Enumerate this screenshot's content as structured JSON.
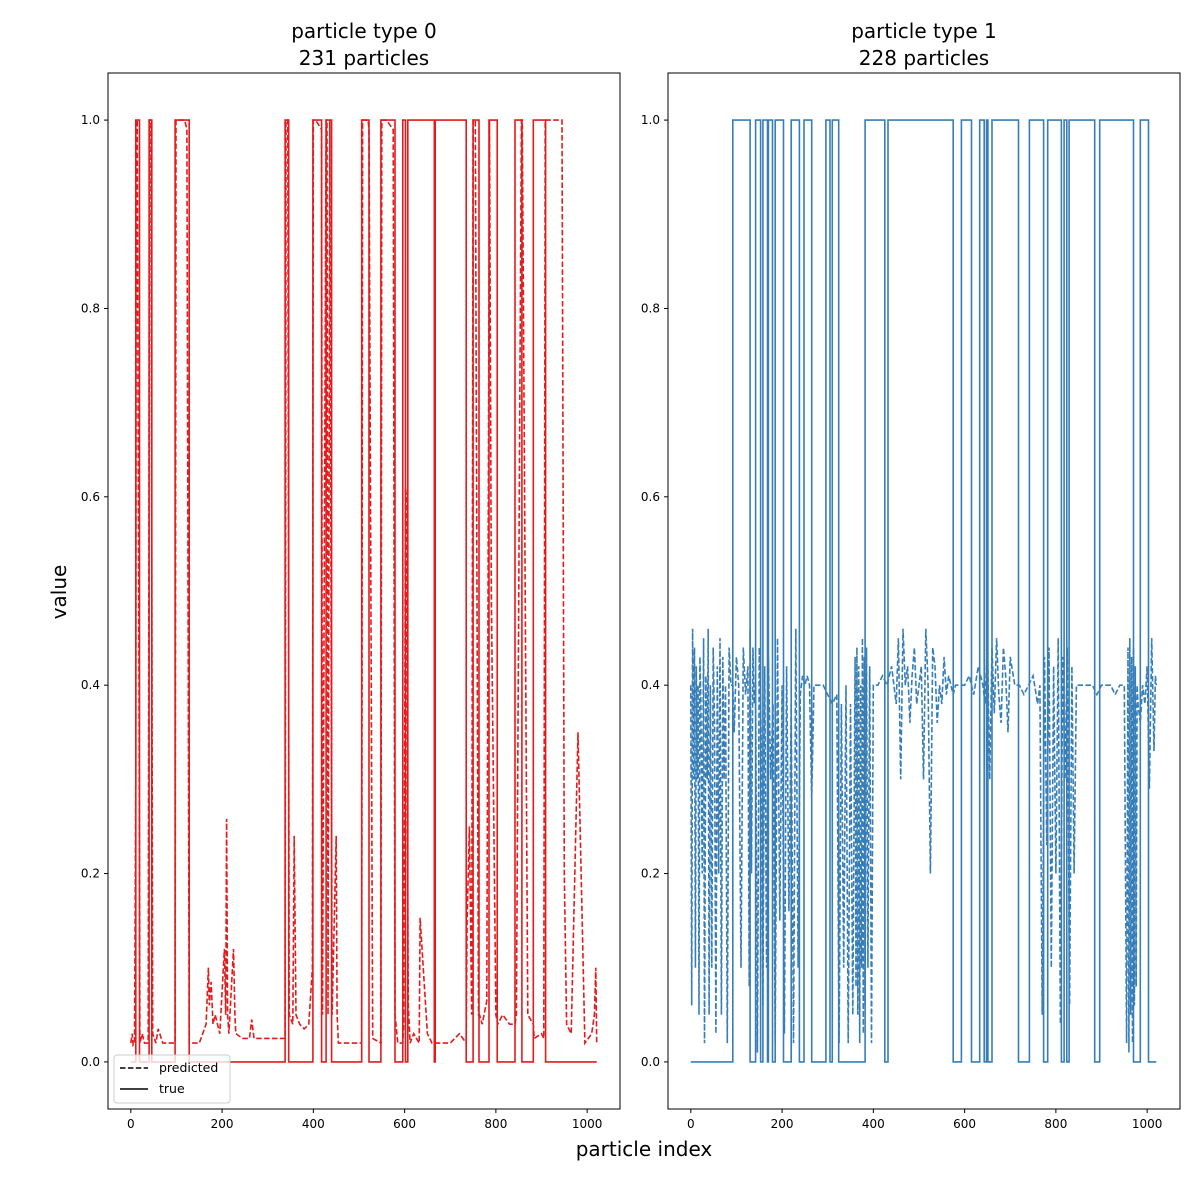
{
  "figure": {
    "xlabel": "particle index",
    "ylabel": "value"
  },
  "legend": {
    "entries": [
      {
        "label": "predicted",
        "style": "dashed"
      },
      {
        "label": "true",
        "style": "solid"
      }
    ],
    "placement": "lower-left",
    "color": "#000000"
  },
  "chart_data": [
    {
      "type": "line",
      "title_line1": "particle type 0",
      "title_line2": "231 particles",
      "color": "#e41a1c",
      "xlim": [
        -50,
        1072
      ],
      "ylim": [
        -0.05,
        1.05
      ],
      "xticks": [
        0,
        200,
        400,
        600,
        800,
        1000
      ],
      "yticks": [
        "0.0",
        "0.2",
        "0.4",
        "0.6",
        "0.8",
        "1.0"
      ],
      "grid": false,
      "series": [
        {
          "name": "true",
          "style": "solid",
          "x": [
            0,
            11,
            11,
            19,
            19,
            40,
            40,
            46,
            46,
            97,
            97,
            128,
            128,
            338,
            338,
            346,
            346,
            399,
            399,
            418,
            418,
            428,
            428,
            440,
            440,
            506,
            506,
            522,
            522,
            548,
            548,
            579,
            579,
            596,
            596,
            602,
            602,
            607,
            607,
            665,
            665,
            667,
            667,
            735,
            735,
            750,
            750,
            763,
            763,
            785,
            785,
            803,
            803,
            842,
            842,
            857,
            857,
            882,
            882,
            909,
            909,
            1021
          ],
          "y": [
            0,
            0,
            1,
            1,
            0,
            0,
            1,
            1,
            0,
            0,
            1,
            1,
            0,
            0,
            1,
            1,
            0,
            0,
            1,
            1,
            0,
            0,
            1,
            1,
            0,
            0,
            1,
            1,
            0,
            0,
            1,
            1,
            0,
            0,
            1,
            1,
            0,
            0,
            1,
            1,
            0,
            0,
            1,
            1,
            0,
            0,
            1,
            1,
            0,
            0,
            1,
            1,
            0,
            0,
            1,
            1,
            0,
            0,
            1,
            1,
            0,
            0
          ]
        },
        {
          "name": "predicted",
          "style": "dashed",
          "x": [
            0,
            3,
            5,
            8,
            11,
            12,
            14,
            18,
            20,
            25,
            30,
            38,
            41,
            44,
            48,
            55,
            60,
            70,
            80,
            97,
            99,
            118,
            123,
            128,
            130,
            150,
            165,
            170,
            172,
            176,
            180,
            185,
            195,
            205,
            208,
            210,
            212,
            215,
            225,
            228,
            230,
            245,
            260,
            265,
            270,
            300,
            320,
            338,
            340,
            344,
            347,
            355,
            358,
            362,
            370,
            380,
            390,
            398,
            400,
            405,
            418,
            420,
            428,
            430,
            432,
            436,
            441,
            450,
            452,
            455,
            470,
            490,
            505,
            506,
            508,
            520,
            522,
            530,
            548,
            550,
            560,
            575,
            579,
            585,
            596,
            598,
            600,
            602,
            604,
            606,
            608,
            612,
            620,
            632,
            634,
            650,
            660,
            665,
            667,
            700,
            720,
            735,
            737,
            742,
            747,
            750,
            755,
            762,
            764,
            770,
            780,
            786,
            790,
            800,
            804,
            815,
            830,
            842,
            845,
            856,
            858,
            870,
            882,
            884,
            900,
            905,
            908,
            912,
            930,
            945,
            950,
            955,
            965,
            980,
            995,
            1010,
            1016,
            1019,
            1021
          ],
          "y": [
            0.02,
            0.03,
            0.018,
            0.02,
            0.3,
            1,
            1,
            0.4,
            0.02,
            0.03,
            0.02,
            0.02,
            1,
            1,
            0.03,
            0.02,
            0.035,
            0.02,
            0.02,
            0.02,
            1,
            1,
            0.99,
            0.02,
            0.02,
            0.02,
            0.04,
            0.1,
            0.06,
            0.085,
            0.04,
            0.05,
            0.03,
            0.12,
            0.05,
            0.258,
            0.05,
            0.03,
            0.12,
            0.05,
            0.03,
            0.025,
            0.025,
            0.045,
            0.025,
            0.025,
            0.025,
            0.025,
            1,
            1,
            0.05,
            0.04,
            0.24,
            0.05,
            0.04,
            0.035,
            0.04,
            0.1,
            1,
            1,
            0.99,
            0.05,
            1,
            1,
            0.05,
            1,
            0.05,
            0.24,
            0.05,
            0.02,
            0.02,
            0.02,
            0.02,
            0.02,
            1,
            1,
            0.99,
            0.025,
            0.02,
            1,
            1,
            0.99,
            0.05,
            0.02,
            0.02,
            0.04,
            0.3,
            0.61,
            0.6,
            0.25,
            0.06,
            0.02,
            0.03,
            0.02,
            0.153,
            0.03,
            0.02,
            0.02,
            0.02,
            0.02,
            0.03,
            0.02,
            0.15,
            0.25,
            0.05,
            1,
            1,
            0.05,
            0.05,
            0.04,
            0.065,
            1,
            0.5,
            0.05,
            0.04,
            0.05,
            0.04,
            0.04,
            0.05,
            1,
            1,
            0.05,
            0.04,
            0.025,
            0.03,
            0.025,
            1,
            1,
            1,
            1,
            0.2,
            0.04,
            0.03,
            0.35,
            0.02,
            0.03,
            0.05,
            0.1,
            0.02
          ]
        }
      ]
    },
    {
      "type": "line",
      "title_line1": "particle type 1",
      "title_line2": "228 particles",
      "color": "#377eb8",
      "xlim": [
        -50,
        1072
      ],
      "ylim": [
        -0.05,
        1.05
      ],
      "xticks": [
        0,
        200,
        400,
        600,
        800,
        1000
      ],
      "yticks": [
        "0.0",
        "0.2",
        "0.4",
        "0.6",
        "0.8",
        "1.0"
      ],
      "grid": false,
      "series": [
        {
          "name": "true",
          "style": "solid",
          "x": [
            0,
            92,
            92,
            130,
            130,
            142,
            142,
            153,
            153,
            158,
            158,
            168,
            168,
            170,
            170,
            179,
            179,
            185,
            185,
            203,
            203,
            220,
            220,
            238,
            238,
            248,
            248,
            265,
            265,
            296,
            296,
            305,
            305,
            310,
            310,
            324,
            324,
            382,
            382,
            425,
            425,
            432,
            432,
            575,
            575,
            593,
            593,
            615,
            615,
            633,
            633,
            643,
            643,
            648,
            648,
            651,
            651,
            660,
            660,
            718,
            718,
            742,
            742,
            773,
            773,
            782,
            782,
            812,
            812,
            818,
            818,
            824,
            824,
            829,
            829,
            885,
            885,
            896,
            896,
            970,
            970,
            985,
            985,
            1003,
            1003,
            1020
          ],
          "y": [
            0,
            0,
            1,
            1,
            0,
            0,
            1,
            1,
            0,
            0,
            1,
            1,
            0,
            0,
            1,
            1,
            0,
            0,
            1,
            1,
            0,
            0,
            1,
            1,
            0,
            0,
            1,
            1,
            0,
            0,
            1,
            1,
            0,
            0,
            1,
            1,
            0,
            0,
            1,
            1,
            0,
            0,
            1,
            1,
            0,
            0,
            1,
            1,
            0,
            0,
            1,
            1,
            0,
            0,
            1,
            1,
            0,
            0,
            1,
            1,
            0,
            0,
            1,
            1,
            0,
            0,
            1,
            1,
            0,
            0,
            1,
            1,
            0,
            0,
            1,
            1,
            0,
            0,
            1,
            1,
            0,
            0,
            1,
            1,
            0,
            0
          ]
        },
        {
          "name": "predicted",
          "style": "dashed",
          "x": [
            0,
            2,
            4,
            6,
            8,
            10,
            12,
            14,
            16,
            18,
            20,
            22,
            25,
            28,
            30,
            33,
            36,
            38,
            40,
            43,
            46,
            49,
            52,
            55,
            58,
            61,
            64,
            67,
            70,
            73,
            76,
            80,
            84,
            88,
            92,
            95,
            100,
            105,
            110,
            115,
            120,
            125,
            128,
            130,
            133,
            136,
            139,
            142,
            146,
            150,
            154,
            158,
            162,
            166,
            170,
            175,
            180,
            185,
            190,
            195,
            200,
            205,
            210,
            215,
            220,
            225,
            230,
            235,
            240,
            245,
            250,
            255,
            260,
            265,
            270,
            275,
            280,
            290,
            300,
            310,
            320,
            325,
            330,
            335,
            340,
            345,
            350,
            355,
            360,
            362,
            364,
            366,
            368,
            370,
            372,
            374,
            376,
            378,
            380,
            382,
            385,
            388,
            392,
            396,
            400,
            410,
            420,
            430,
            440,
            450,
            455,
            460,
            465,
            470,
            475,
            480,
            485,
            490,
            495,
            500,
            505,
            510,
            515,
            520,
            525,
            530,
            535,
            540,
            545,
            550,
            555,
            560,
            565,
            570,
            575,
            580,
            590,
            600,
            610,
            620,
            630,
            640,
            645,
            650,
            655,
            660,
            665,
            670,
            675,
            680,
            685,
            690,
            695,
            700,
            710,
            720,
            730,
            740,
            750,
            760,
            765,
            770,
            775,
            780,
            785,
            790,
            795,
            800,
            805,
            810,
            815,
            820,
            825,
            830,
            835,
            840,
            845,
            850,
            860,
            870,
            880,
            890,
            900,
            910,
            920,
            930,
            940,
            950,
            955,
            958,
            960,
            962,
            964,
            966,
            968,
            970,
            972,
            974,
            976,
            978,
            980,
            985,
            990,
            995,
            1000,
            1005,
            1010,
            1015,
            1018,
            1020
          ],
          "y": [
            0.4,
            0.06,
            0.46,
            0.3,
            0.44,
            0.1,
            0.42,
            0.3,
            0.4,
            0.05,
            0.43,
            0.38,
            0.2,
            0.45,
            0.02,
            0.41,
            0.3,
            0.46,
            0.05,
            0.4,
            0.1,
            0.44,
            0.36,
            0.03,
            0.42,
            0.2,
            0.45,
            0.05,
            0.43,
            0.3,
            0.4,
            0.02,
            0.44,
            0.4,
            0.4,
            0.35,
            0.43,
            0.4,
            0.1,
            0.44,
            0.39,
            0.42,
            0.08,
            0.46,
            0.2,
            0.44,
            0.38,
            0.4,
            0.01,
            0.44,
            0.35,
            0.06,
            0.42,
            0.1,
            0.43,
            0.3,
            0.38,
            0.02,
            0.45,
            0.15,
            0.4,
            0.03,
            0.42,
            0.16,
            0.38,
            0.02,
            0.46,
            0.1,
            0.39,
            0.41,
            0.4,
            0.41,
            0.4,
            0.28,
            0.4,
            0.4,
            0.4,
            0.4,
            0.39,
            0.38,
            0.39,
            0.02,
            0.38,
            0.1,
            0.4,
            0.02,
            0.38,
            0.05,
            0.43,
            0.08,
            0.44,
            0.05,
            0.42,
            0.02,
            0.4,
            0.1,
            0.45,
            0.03,
            0.43,
            0.06,
            0.44,
            0.1,
            0.42,
            0.02,
            0.4,
            0.4,
            0.41,
            0.4,
            0.42,
            0.38,
            0.45,
            0.3,
            0.46,
            0.4,
            0.42,
            0.36,
            0.41,
            0.44,
            0.38,
            0.4,
            0.42,
            0.3,
            0.46,
            0.4,
            0.2,
            0.44,
            0.42,
            0.36,
            0.4,
            0.38,
            0.43,
            0.39,
            0.41,
            0.4,
            0.39,
            0.4,
            0.4,
            0.4,
            0.41,
            0.39,
            0.42,
            0.4,
            0.38,
            0.45,
            0.3,
            0.44,
            0.37,
            0.45,
            0.39,
            0.36,
            0.44,
            0.41,
            0.35,
            0.43,
            0.4,
            0.4,
            0.39,
            0.4,
            0.41,
            0.38,
            0.4,
            0.05,
            0.43,
            0.23,
            0.44,
            0.1,
            0.42,
            0.2,
            0.45,
            0.04,
            0.43,
            0.3,
            0.44,
            0.06,
            0.42,
            0.2,
            0.4,
            0.4,
            0.4,
            0.4,
            0.4,
            0.39,
            0.4,
            0.4,
            0.4,
            0.39,
            0.4,
            0.4,
            0.02,
            0.44,
            0.01,
            0.45,
            0.05,
            0.43,
            0.02,
            0.44,
            0.06,
            0.42,
            0.08,
            0.4,
            0.38,
            0.36,
            0.4,
            0.38,
            0.42,
            0.29,
            0.45,
            0.33,
            0.41,
            0.4
          ]
        }
      ]
    }
  ]
}
